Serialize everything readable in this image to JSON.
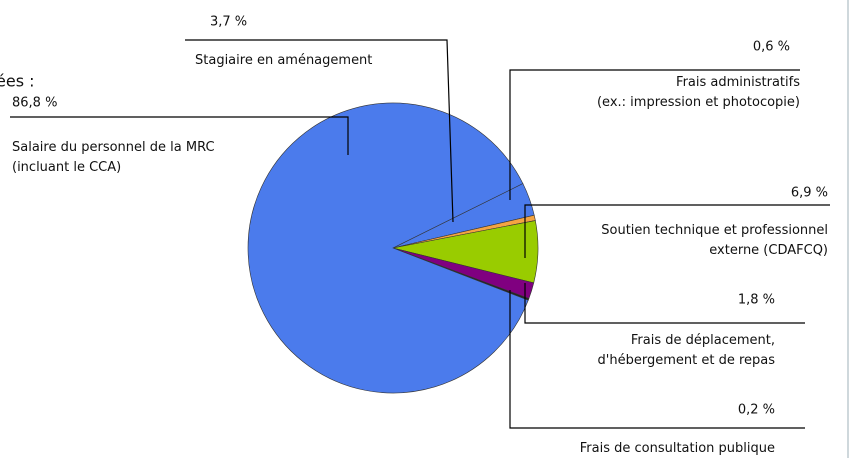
{
  "chart_data": {
    "type": "pie",
    "fragments": [
      "ées :"
    ],
    "categories": [
      "Stagiaire en aménagement",
      "Frais administratifs\n(ex.: impression et photocopie)",
      "Soutien technique et professionnel\nexterne (CDAFCQ)",
      "Frais de déplacement,\nd'hébergement et de repas",
      "Frais de consultation publique",
      "Salaire du personnel de la MRC\n(incluant le CCA)"
    ],
    "values": [
      3.7,
      0.6,
      6.9,
      1.8,
      0.2,
      86.8
    ],
    "value_labels": [
      "3,7 %",
      "0,6 %",
      "6,9 %",
      "1,8 %",
      "0,2 %",
      "86,8 %"
    ],
    "colors": [
      "#4b7bec",
      "#f4a442",
      "#99cc00",
      "#800080",
      "#222222",
      "#4b7bec"
    ]
  }
}
